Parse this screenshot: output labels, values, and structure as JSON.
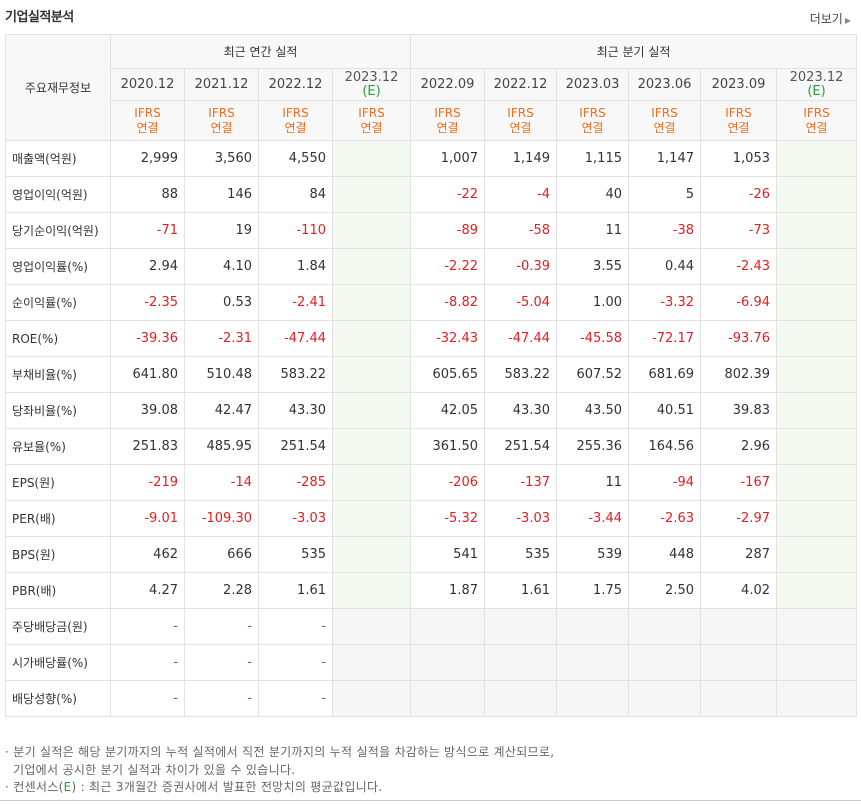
{
  "header": {
    "title": "기업실적분석",
    "more_label": "더보기"
  },
  "table": {
    "label_header": "주요재무정보",
    "group_annual": "최근 연간 실적",
    "group_quarter": "최근 분기 실적",
    "annual_periods": [
      "2020.12",
      "2021.12",
      "2022.12"
    ],
    "annual_estimate": {
      "year": "2023.12",
      "e": "(E)"
    },
    "quarter_periods": [
      "2022.09",
      "2022.12",
      "2023.03",
      "2023.06",
      "2023.09"
    ],
    "quarter_estimate": {
      "year": "2023.12",
      "e": "(E)"
    },
    "ifrs_top": "IFRS",
    "ifrs_bottom": "연결",
    "rows": [
      {
        "label": "매출액(억원)",
        "annual": [
          "2,999",
          "3,560",
          "4,550"
        ],
        "quarter": [
          "1,007",
          "1,149",
          "1,115",
          "1,147",
          "1,053"
        ]
      },
      {
        "label": "영업이익(억원)",
        "annual": [
          "88",
          "146",
          "84"
        ],
        "quarter": [
          "-22",
          "-4",
          "40",
          "5",
          "-26"
        ]
      },
      {
        "label": "당기순이익(억원)",
        "annual": [
          "-71",
          "19",
          "-110"
        ],
        "quarter": [
          "-89",
          "-58",
          "11",
          "-38",
          "-73"
        ]
      },
      {
        "label": "영업이익률(%)",
        "annual": [
          "2.94",
          "4.10",
          "1.84"
        ],
        "quarter": [
          "-2.22",
          "-0.39",
          "3.55",
          "0.44",
          "-2.43"
        ]
      },
      {
        "label": "순이익률(%)",
        "annual": [
          "-2.35",
          "0.53",
          "-2.41"
        ],
        "quarter": [
          "-8.82",
          "-5.04",
          "1.00",
          "-3.32",
          "-6.94"
        ]
      },
      {
        "label": "ROE(%)",
        "annual": [
          "-39.36",
          "-2.31",
          "-47.44"
        ],
        "quarter": [
          "-32.43",
          "-47.44",
          "-45.58",
          "-72.17",
          "-93.76"
        ]
      },
      {
        "label": "부채비율(%)",
        "annual": [
          "641.80",
          "510.48",
          "583.22"
        ],
        "quarter": [
          "605.65",
          "583.22",
          "607.52",
          "681.69",
          "802.39"
        ]
      },
      {
        "label": "당좌비율(%)",
        "annual": [
          "39.08",
          "42.47",
          "43.30"
        ],
        "quarter": [
          "42.05",
          "43.30",
          "43.50",
          "40.51",
          "39.83"
        ]
      },
      {
        "label": "유보율(%)",
        "annual": [
          "251.83",
          "485.95",
          "251.54"
        ],
        "quarter": [
          "361.50",
          "251.54",
          "255.36",
          "164.56",
          "2.96"
        ]
      },
      {
        "label": "EPS(원)",
        "annual": [
          "-219",
          "-14",
          "-285"
        ],
        "quarter": [
          "-206",
          "-137",
          "11",
          "-94",
          "-167"
        ]
      },
      {
        "label": "PER(배)",
        "annual": [
          "-9.01",
          "-109.30",
          "-3.03"
        ],
        "quarter": [
          "-5.32",
          "-3.03",
          "-3.44",
          "-2.63",
          "-2.97"
        ]
      },
      {
        "label": "BPS(원)",
        "annual": [
          "462",
          "666",
          "535"
        ],
        "quarter": [
          "541",
          "535",
          "539",
          "448",
          "287"
        ]
      },
      {
        "label": "PBR(배)",
        "annual": [
          "4.27",
          "2.28",
          "1.61"
        ],
        "quarter": [
          "1.87",
          "1.61",
          "1.75",
          "2.50",
          "4.02"
        ]
      },
      {
        "label": "주당배당금(원)",
        "annual": [
          "-",
          "-",
          "-"
        ],
        "quarter": [
          "",
          "",
          "",
          "",
          ""
        ]
      },
      {
        "label": "시가배당률(%)",
        "annual": [
          "-",
          "-",
          "-"
        ],
        "quarter": [
          "",
          "",
          "",
          "",
          ""
        ]
      },
      {
        "label": "배당성향(%)",
        "annual": [
          "-",
          "-",
          "-"
        ],
        "quarter": [
          "",
          "",
          "",
          "",
          ""
        ]
      }
    ]
  },
  "notes": {
    "line1": "· 분기 실적은 해당 분기까지의 누적 실적에서 직전 분기까지의 누적 실적을 차감하는 방식으로 계산되므로,",
    "line2": "기업에서 공시한 분기 실적과 차이가 있을 수 있습니다.",
    "line3_a": "· 컨센서스(",
    "line3_e": "E",
    "line3_b": ") : 최근 3개월간 증권사에서 발표한 전망치의 평균값입니다."
  },
  "colors": {
    "negative": "#e02020",
    "ifrs": "#f26b1d",
    "estimate_bg": "#f4f9f2",
    "estimate_e": "#2a9b3c"
  }
}
